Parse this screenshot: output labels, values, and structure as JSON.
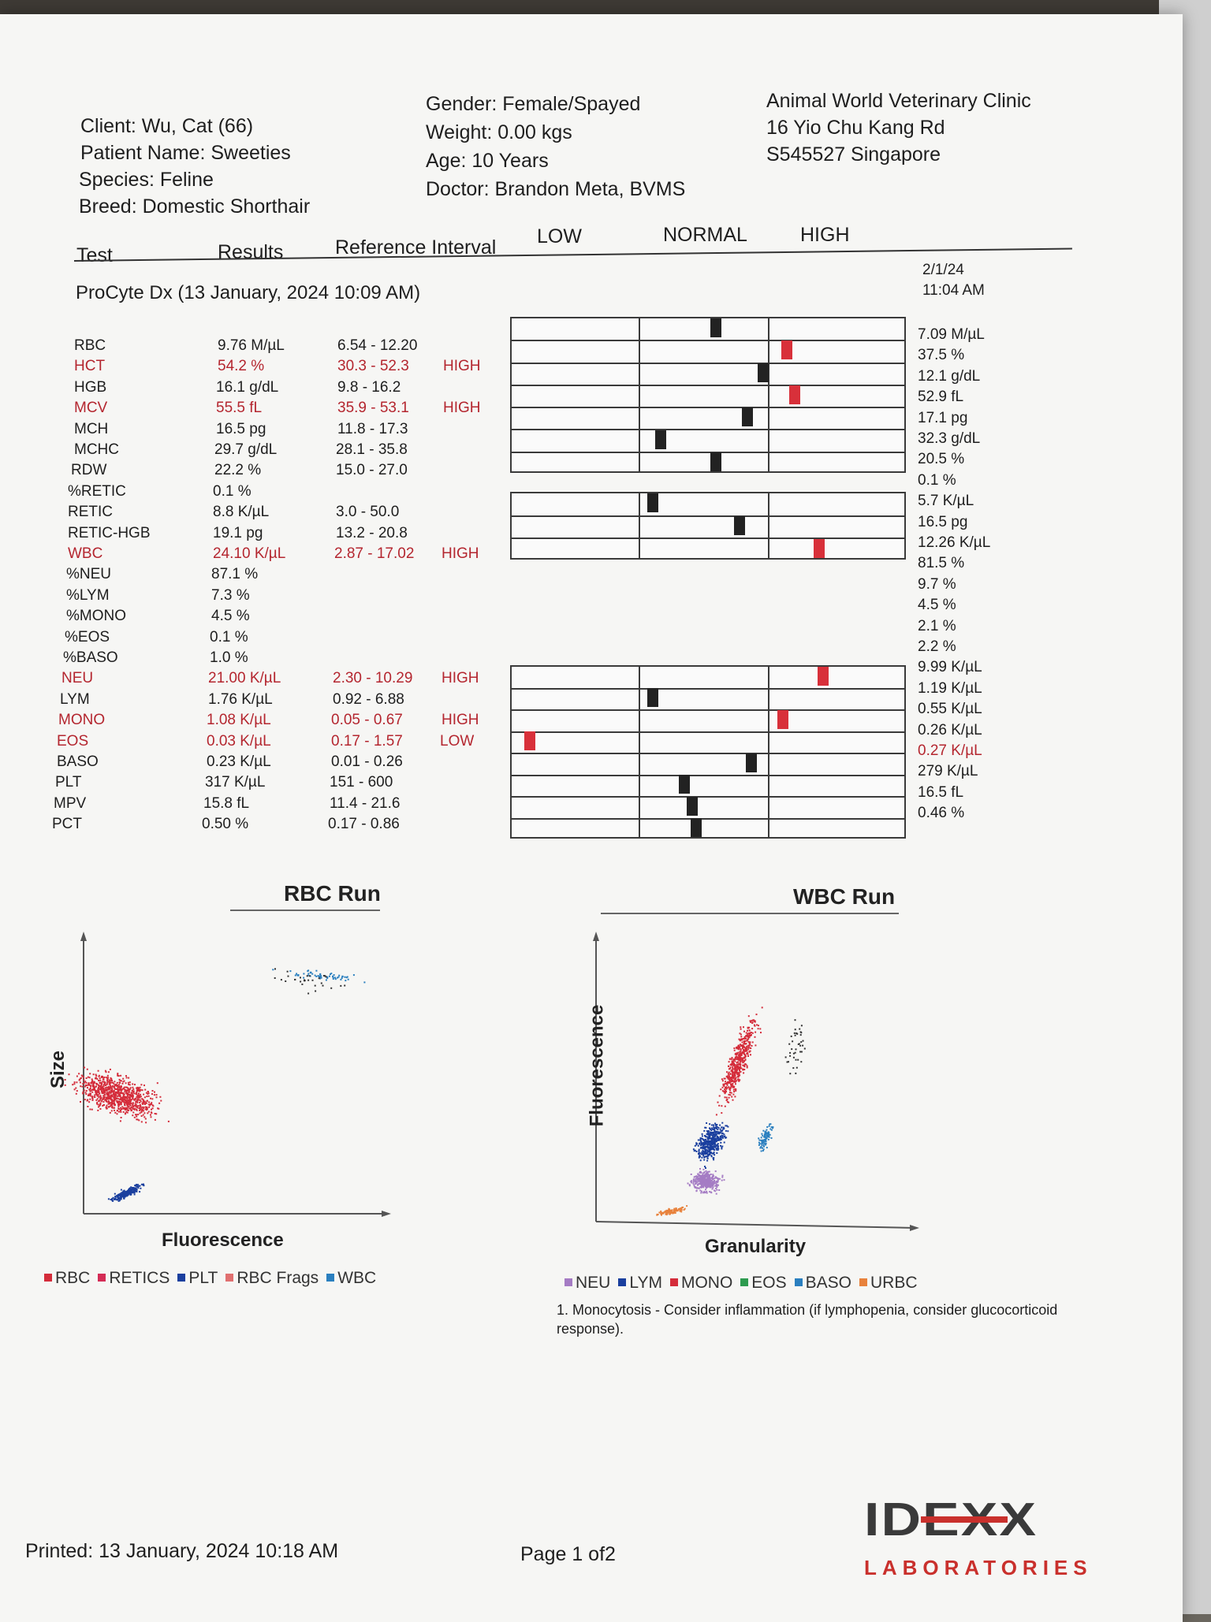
{
  "patient": {
    "client": "Client: Wu, Cat (66)",
    "patient_name": "Patient Name: Sweeties",
    "species": "Species: Feline",
    "breed": "Breed: Domestic Shorthair",
    "gender": "Gender: Female/Spayed",
    "weight": "Weight: 0.00 kgs",
    "age": "Age: 10 Years",
    "doctor": "Doctor: Brandon Meta, BVMS"
  },
  "clinic": {
    "name": "Animal World Veterinary Clinic",
    "address": "16 Yio Chu Kang Rd",
    "postal": "S545527 Singapore"
  },
  "table_header": {
    "test": "Test",
    "results": "Results",
    "reference": "Reference Interval",
    "low": "LOW",
    "normal": "NORMAL",
    "high": "HIGH"
  },
  "previous": {
    "date": "2/1/24",
    "time": "11:04 AM"
  },
  "run_title": "ProCyte Dx (13 January, 2024 10:09 AM)",
  "tests": [
    {
      "name": "RBC",
      "result": "9.76 M/µL",
      "ref": "6.54 - 12.20",
      "flag": "",
      "prev": "7.09 M/µL",
      "abnormal": false,
      "prev_abnormal": false,
      "marker": 0.52,
      "marker_abnormal": false
    },
    {
      "name": "HCT",
      "result": "54.2 %",
      "ref": "30.3 - 52.3",
      "flag": "HIGH",
      "prev": "37.5 %",
      "abnormal": true,
      "prev_abnormal": false,
      "marker": 0.7,
      "marker_abnormal": true
    },
    {
      "name": "HGB",
      "result": "16.1 g/dL",
      "ref": "9.8 - 16.2",
      "flag": "",
      "prev": "12.1 g/dL",
      "abnormal": false,
      "prev_abnormal": false,
      "marker": 0.64,
      "marker_abnormal": false
    },
    {
      "name": "MCV",
      "result": "55.5 fL",
      "ref": "35.9 - 53.1",
      "flag": "HIGH",
      "prev": "52.9 fL",
      "abnormal": true,
      "prev_abnormal": false,
      "marker": 0.72,
      "marker_abnormal": true
    },
    {
      "name": "MCH",
      "result": "16.5 pg",
      "ref": "11.8 - 17.3",
      "flag": "",
      "prev": "17.1 pg",
      "abnormal": false,
      "prev_abnormal": false,
      "marker": 0.6,
      "marker_abnormal": false
    },
    {
      "name": "MCHC",
      "result": "29.7 g/dL",
      "ref": "28.1 - 35.8",
      "flag": "",
      "prev": "32.3 g/dL",
      "abnormal": false,
      "prev_abnormal": false,
      "marker": 0.38,
      "marker_abnormal": false
    },
    {
      "name": "RDW",
      "result": "22.2 %",
      "ref": "15.0 - 27.0",
      "flag": "",
      "prev": "20.5 %",
      "abnormal": false,
      "prev_abnormal": false,
      "marker": 0.52,
      "marker_abnormal": false
    },
    {
      "name": "%RETIC",
      "result": "0.1 %",
      "ref": "",
      "flag": "",
      "prev": "0.1 %",
      "abnormal": false,
      "prev_abnormal": false,
      "marker": null,
      "marker_abnormal": false
    },
    {
      "name": "RETIC",
      "result": "8.8 K/µL",
      "ref": "3.0 - 50.0",
      "flag": "",
      "prev": "5.7 K/µL",
      "abnormal": false,
      "prev_abnormal": false,
      "marker": 0.36,
      "marker_abnormal": false
    },
    {
      "name": "RETIC-HGB",
      "result": "19.1 pg",
      "ref": "13.2 - 20.8",
      "flag": "",
      "prev": "16.5 pg",
      "abnormal": false,
      "prev_abnormal": false,
      "marker": 0.58,
      "marker_abnormal": false
    },
    {
      "name": "WBC",
      "result": "24.10 K/µL",
      "ref": "2.87 - 17.02",
      "flag": "HIGH",
      "prev": "12.26 K/µL",
      "abnormal": true,
      "prev_abnormal": false,
      "marker": 0.78,
      "marker_abnormal": true
    },
    {
      "name": "%NEU",
      "result": "87.1 %",
      "ref": "",
      "flag": "",
      "prev": "81.5 %",
      "abnormal": false,
      "prev_abnormal": false,
      "marker": null,
      "marker_abnormal": false
    },
    {
      "name": "%LYM",
      "result": "7.3 %",
      "ref": "",
      "flag": "",
      "prev": "9.7 %",
      "abnormal": false,
      "prev_abnormal": false,
      "marker": null,
      "marker_abnormal": false
    },
    {
      "name": "%MONO",
      "result": "4.5 %",
      "ref": "",
      "flag": "",
      "prev": "4.5 %",
      "abnormal": false,
      "prev_abnormal": false,
      "marker": null,
      "marker_abnormal": false
    },
    {
      "name": "%EOS",
      "result": "0.1 %",
      "ref": "",
      "flag": "",
      "prev": "2.1 %",
      "abnormal": false,
      "prev_abnormal": false,
      "marker": null,
      "marker_abnormal": false
    },
    {
      "name": "%BASO",
      "result": "1.0 %",
      "ref": "",
      "flag": "",
      "prev": "2.2 %",
      "abnormal": false,
      "prev_abnormal": false,
      "marker": null,
      "marker_abnormal": false
    },
    {
      "name": "NEU",
      "result": "21.00 K/µL",
      "ref": "2.30 - 10.29",
      "flag": "HIGH",
      "prev": "9.99 K/µL",
      "abnormal": true,
      "prev_abnormal": false,
      "marker": 0.79,
      "marker_abnormal": true
    },
    {
      "name": "LYM",
      "result": "1.76 K/µL",
      "ref": "0.92 - 6.88",
      "flag": "",
      "prev": "1.19 K/µL",
      "abnormal": false,
      "prev_abnormal": false,
      "marker": 0.36,
      "marker_abnormal": false
    },
    {
      "name": "MONO",
      "result": "1.08 K/µL",
      "ref": "0.05 - 0.67",
      "flag": "HIGH",
      "prev": "0.55 K/µL",
      "abnormal": true,
      "prev_abnormal": false,
      "marker": 0.69,
      "marker_abnormal": true
    },
    {
      "name": "EOS",
      "result": "0.03 K/µL",
      "ref": "0.17 - 1.57",
      "flag": "LOW",
      "prev": "0.26 K/µL",
      "abnormal": true,
      "prev_abnormal": false,
      "marker": 0.05,
      "marker_abnormal": true
    },
    {
      "name": "BASO",
      "result": "0.23 K/µL",
      "ref": "0.01 - 0.26",
      "flag": "",
      "prev": "0.27 K/µL",
      "abnormal": false,
      "prev_abnormal": true,
      "marker": 0.61,
      "marker_abnormal": false
    },
    {
      "name": "PLT",
      "result": "317 K/µL",
      "ref": "151 - 600",
      "flag": "",
      "prev": "279 K/µL",
      "abnormal": false,
      "prev_abnormal": false,
      "marker": 0.44,
      "marker_abnormal": false
    },
    {
      "name": "MPV",
      "result": "15.8 fL",
      "ref": "11.4 - 21.6",
      "flag": "",
      "prev": "16.5 fL",
      "abnormal": false,
      "prev_abnormal": false,
      "marker": 0.46,
      "marker_abnormal": false
    },
    {
      "name": "PCT",
      "result": "0.50 %",
      "ref": "0.17 - 0.86",
      "flag": "",
      "prev": "0.46 %",
      "abnormal": false,
      "prev_abnormal": false,
      "marker": 0.47,
      "marker_abnormal": false
    }
  ],
  "rbc_run": {
    "title": "RBC Run",
    "xlabel": "Fluorescence",
    "ylabel": "Size",
    "legend": [
      {
        "label": "RBC",
        "color": "#d42c3a"
      },
      {
        "label": "RETICS",
        "color": "#d42c55"
      },
      {
        "label": "PLT",
        "color": "#1a3f9e"
      },
      {
        "label": "RBC Frags",
        "color": "#e07070"
      },
      {
        "label": "WBC",
        "color": "#2a7fbf"
      }
    ]
  },
  "wbc_run": {
    "title": "WBC Run",
    "xlabel": "Granularity",
    "ylabel": "Fluorescence",
    "legend": [
      {
        "label": "NEU",
        "color": "#a57cc4"
      },
      {
        "label": "LYM",
        "color": "#1a3f9e"
      },
      {
        "label": "MONO",
        "color": "#d42c3a"
      },
      {
        "label": "EOS",
        "color": "#2e9b4f"
      },
      {
        "label": "BASO",
        "color": "#2a7fbf"
      },
      {
        "label": "URBC",
        "color": "#e8823c"
      }
    ]
  },
  "note": "1. Monocytosis - Consider inflammation (if lymphopenia, consider glucocorticoid",
  "note_cont": "response).",
  "footer": {
    "printed": "Printed: 13 January, 2024 10:18 AM",
    "page": "Page 1 of2"
  },
  "logo": {
    "brand": "IDEXX",
    "sub": "LABORATORIES"
  },
  "colors": {
    "abnormal": "#b4262f",
    "marker_normal": "#222222",
    "marker_abnormal": "#d8303a"
  }
}
